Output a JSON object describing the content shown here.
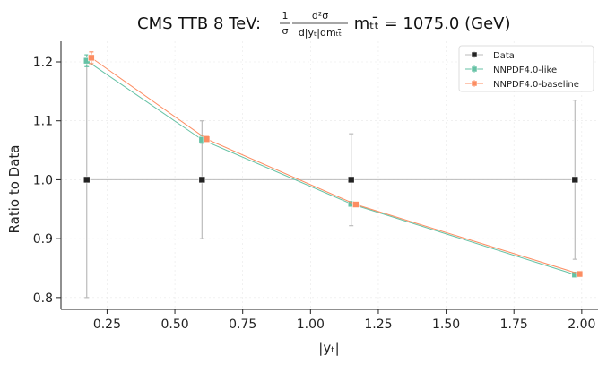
{
  "chart_data": {
    "type": "line",
    "title": {
      "prefix": "CMS TTB 8 TeV: ",
      "frac_num": "1",
      "frac_den": "σ",
      "frac2_num": "d²σ",
      "frac2_den": "d|yₜ|dmₜₜ̄",
      "suffix": " mₜₜ̄ = 1075.0 (GeV)"
    },
    "xlabel": "|yₜ|",
    "ylabel": "Ratio to Data",
    "xlim": [
      0.08,
      2.06
    ],
    "ylim": [
      0.78,
      1.235
    ],
    "xticks": [
      0.25,
      0.5,
      0.75,
      1.0,
      1.25,
      1.5,
      1.75,
      2.0
    ],
    "xtick_labels": [
      "0.25",
      "0.50",
      "0.75",
      "1.00",
      "1.25",
      "1.50",
      "1.75",
      "2.00"
    ],
    "yticks": [
      0.8,
      0.9,
      1.0,
      1.1,
      1.2
    ],
    "ytick_labels": [
      "0.8",
      "0.9",
      "1.0",
      "1.1",
      "1.2"
    ],
    "grid": true,
    "legend_position": "top-right",
    "series": [
      {
        "name": "Data",
        "color": "#222222",
        "line_color": "#bbbbbb",
        "x": [
          0.175,
          0.6,
          1.15,
          1.975
        ],
        "y": [
          1.0,
          1.0,
          1.0,
          1.0
        ],
        "err": [
          0.2,
          0.1,
          0.078,
          0.135
        ]
      },
      {
        "name": "NNPDF4.0-like",
        "color": "#66c2a5",
        "x": [
          0.175,
          0.6,
          1.15,
          1.975
        ],
        "y": [
          1.202,
          1.068,
          0.959,
          0.839
        ],
        "err": [
          0.01,
          0.006,
          0.004,
          0.004
        ]
      },
      {
        "name": "NNPDF4.0-baseline",
        "color": "#fc8d62",
        "x": [
          0.192,
          0.617,
          1.167,
          1.992
        ],
        "y": [
          1.207,
          1.069,
          0.958,
          0.84
        ],
        "err": [
          0.01,
          0.006,
          0.004,
          0.004
        ]
      }
    ]
  }
}
